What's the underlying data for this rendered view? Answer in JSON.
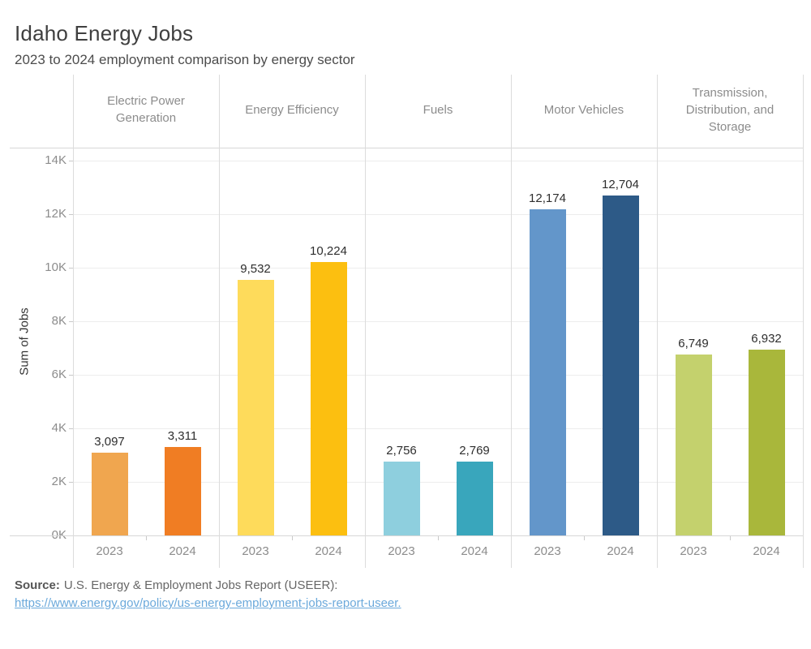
{
  "header": {
    "title": "Idaho Energy Jobs",
    "subtitle": "2023 to 2024  employment comparison by energy sector"
  },
  "chart_data": {
    "type": "bar",
    "title": "Idaho Energy Jobs",
    "subtitle": "2023 to 2024  employment comparison by energy sector",
    "ylabel": "Sum of Jobs",
    "ylim": [
      0,
      14000
    ],
    "ytick_step": 2000,
    "ytick_labels": [
      "0K",
      "2K",
      "4K",
      "6K",
      "8K",
      "10K",
      "12K",
      "14K"
    ],
    "categories": [
      "2023",
      "2024"
    ],
    "grid": true,
    "legend_position": "none",
    "panels": [
      {
        "sector": "Electric Power Generation",
        "values": [
          3097,
          3311
        ],
        "value_labels": [
          "3,097",
          "3,311"
        ],
        "colors": [
          "#F0A64F",
          "#F07D23"
        ]
      },
      {
        "sector": "Energy Efficiency",
        "values": [
          9532,
          10224
        ],
        "value_labels": [
          "9,532",
          "10,224"
        ],
        "colors": [
          "#FEDB5B",
          "#FCBF10"
        ]
      },
      {
        "sector": "Fuels",
        "values": [
          2756,
          2769
        ],
        "value_labels": [
          "2,756",
          "2,769"
        ],
        "colors": [
          "#8ECFDE",
          "#39A6BC"
        ]
      },
      {
        "sector": "Motor Vehicles",
        "values": [
          12174,
          12704
        ],
        "value_labels": [
          "12,174",
          "12,704"
        ],
        "colors": [
          "#6396CA",
          "#2D5A87"
        ]
      },
      {
        "sector": "Transmission, Distribution, and Storage",
        "values": [
          6749,
          6932
        ],
        "value_labels": [
          "6,749",
          "6,932"
        ],
        "colors": [
          "#C4D16D",
          "#A9B73B"
        ]
      }
    ]
  },
  "footer": {
    "source_label": "Source:",
    "source_text": "U.S. Energy & Employment Jobs Report (USEER):",
    "link_text": "https://www.energy.gov/policy/us-energy-employment-jobs-report-useer.",
    "link_color": "#6BA9DB"
  }
}
